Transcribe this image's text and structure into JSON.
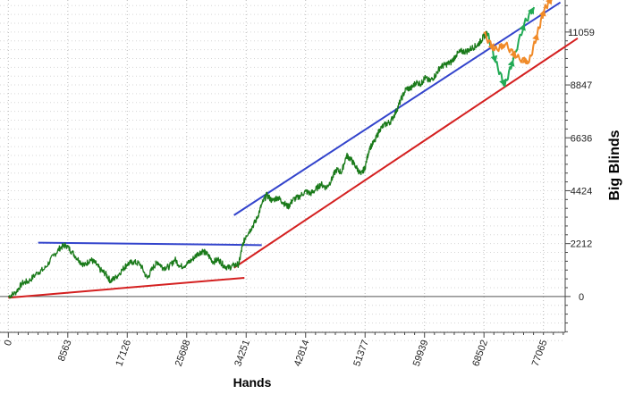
{
  "chart_data": {
    "type": "line",
    "title": "",
    "xlabel": "Hands",
    "ylabel": "Big Blinds",
    "x_ticks": [
      0,
      8563,
      17126,
      25688,
      34251,
      42814,
      51377,
      59939,
      68502,
      77065
    ],
    "y_ticks": [
      0,
      2212,
      4424,
      6636,
      8847,
      11059
    ],
    "xlim": [
      -1200,
      80200
    ],
    "ylim": [
      -1500,
      12400
    ],
    "grid": true,
    "series": [
      {
        "color": "#1a7a1a",
        "points": [
          [
            0,
            0
          ],
          [
            1000,
            150
          ],
          [
            2000,
            550
          ],
          [
            3000,
            650
          ],
          [
            4200,
            1000
          ],
          [
            5200,
            1150
          ],
          [
            6500,
            1700
          ],
          [
            7500,
            2050
          ],
          [
            8300,
            2150
          ],
          [
            9200,
            1850
          ],
          [
            10200,
            1500
          ],
          [
            11000,
            1300
          ],
          [
            11800,
            1550
          ],
          [
            12500,
            1400
          ],
          [
            13300,
            1100
          ],
          [
            14000,
            950
          ],
          [
            14700,
            650
          ],
          [
            15500,
            800
          ],
          [
            16500,
            1150
          ],
          [
            17126,
            1350
          ],
          [
            18000,
            1450
          ],
          [
            19000,
            1350
          ],
          [
            20000,
            750
          ],
          [
            20800,
            1200
          ],
          [
            21500,
            1450
          ],
          [
            22300,
            1200
          ],
          [
            23200,
            1250
          ],
          [
            24000,
            1550
          ],
          [
            24800,
            1250
          ],
          [
            25688,
            1350
          ],
          [
            26500,
            1550
          ],
          [
            27300,
            1800
          ],
          [
            28000,
            1900
          ],
          [
            28700,
            1750
          ],
          [
            29500,
            1450
          ],
          [
            30300,
            1550
          ],
          [
            31000,
            1300
          ],
          [
            31700,
            1200
          ],
          [
            32500,
            1300
          ],
          [
            33200,
            1350
          ],
          [
            33700,
            2100
          ],
          [
            34251,
            2550
          ],
          [
            35000,
            2850
          ],
          [
            35800,
            3250
          ],
          [
            36500,
            3850
          ],
          [
            37200,
            4250
          ],
          [
            38000,
            4000
          ],
          [
            38800,
            4150
          ],
          [
            39500,
            3950
          ],
          [
            40300,
            3750
          ],
          [
            41000,
            4050
          ],
          [
            41800,
            4150
          ],
          [
            42814,
            4400
          ],
          [
            43500,
            4300
          ],
          [
            44200,
            4450
          ],
          [
            45000,
            4700
          ],
          [
            45800,
            4550
          ],
          [
            46500,
            4850
          ],
          [
            47200,
            5300
          ],
          [
            48000,
            5200
          ],
          [
            48700,
            5900
          ],
          [
            49300,
            5750
          ],
          [
            50000,
            5450
          ],
          [
            50800,
            5100
          ],
          [
            51377,
            5400
          ],
          [
            52000,
            6200
          ],
          [
            52800,
            6500
          ],
          [
            53500,
            7000
          ],
          [
            54300,
            7200
          ],
          [
            55000,
            7300
          ],
          [
            55800,
            7700
          ],
          [
            56500,
            8200
          ],
          [
            57300,
            8700
          ],
          [
            58000,
            8700
          ],
          [
            58700,
            8950
          ],
          [
            59500,
            8900
          ],
          [
            59939,
            9150
          ],
          [
            60700,
            9000
          ],
          [
            61500,
            9250
          ],
          [
            62200,
            9600
          ],
          [
            63000,
            9700
          ],
          [
            63800,
            9800
          ],
          [
            64500,
            10100
          ],
          [
            65200,
            10250
          ],
          [
            66000,
            10250
          ],
          [
            66800,
            10400
          ],
          [
            67500,
            10500
          ],
          [
            68100,
            10700
          ],
          [
            68502,
            10900
          ],
          [
            69000,
            11000
          ]
        ]
      }
    ],
    "trend_lines": [
      {
        "color": "#d42020",
        "from": [
          0,
          -50
        ],
        "to": [
          34000,
          780
        ]
      },
      {
        "color": "#d42020",
        "from": [
          32500,
          1200
        ],
        "to": [
          82000,
          10800
        ]
      },
      {
        "color": "#3344cc",
        "from": [
          4300,
          2250
        ],
        "to": [
          36500,
          2150
        ]
      },
      {
        "color": "#3344cc",
        "from": [
          32500,
          3400
        ],
        "to": [
          79500,
          12300
        ]
      }
    ],
    "projections": [
      {
        "color": "#22aa55",
        "points": [
          [
            69000,
            11000
          ],
          [
            70200,
            9800
          ],
          [
            71500,
            8800
          ],
          [
            72700,
            9900
          ],
          [
            74300,
            11400
          ],
          [
            75700,
            12100
          ]
        ]
      },
      {
        "color": "#f08a28",
        "points": [
          [
            68500,
            11000
          ],
          [
            70000,
            10300
          ],
          [
            71600,
            10550
          ],
          [
            73200,
            10000
          ],
          [
            75000,
            9800
          ],
          [
            76200,
            11000
          ],
          [
            77200,
            12000
          ],
          [
            78300,
            12500
          ]
        ]
      }
    ]
  }
}
